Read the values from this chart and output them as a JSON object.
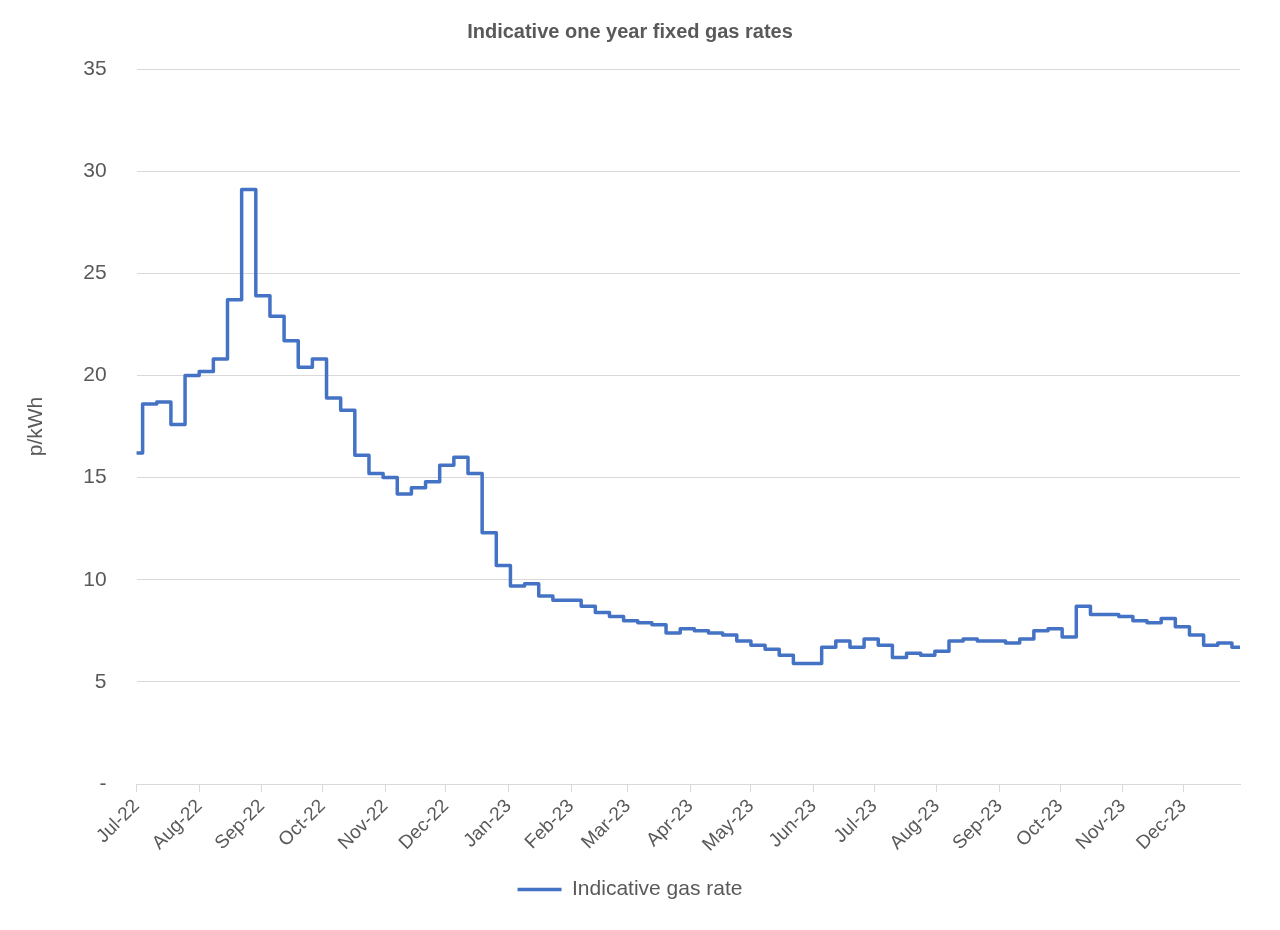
{
  "chart_data": {
    "type": "step",
    "title": "Indicative one year fixed gas rates",
    "ylabel": "p/kWh",
    "x": [
      "2022-07-01",
      "2022-07-04",
      "2022-07-11",
      "2022-07-18",
      "2022-07-25",
      "2022-08-01",
      "2022-08-08",
      "2022-08-15",
      "2022-08-22",
      "2022-08-29",
      "2022-09-05",
      "2022-09-12",
      "2022-09-19",
      "2022-09-26",
      "2022-10-03",
      "2022-10-10",
      "2022-10-17",
      "2022-10-24",
      "2022-10-31",
      "2022-11-07",
      "2022-11-14",
      "2022-11-21",
      "2022-11-28",
      "2022-12-05",
      "2022-12-12",
      "2022-12-19",
      "2022-12-26",
      "2023-01-02",
      "2023-01-09",
      "2023-01-16",
      "2023-01-23",
      "2023-02-06",
      "2023-02-13",
      "2023-02-20",
      "2023-02-27",
      "2023-03-06",
      "2023-03-13",
      "2023-03-20",
      "2023-03-27",
      "2023-04-03",
      "2023-04-10",
      "2023-04-17",
      "2023-04-24",
      "2023-05-01",
      "2023-05-08",
      "2023-05-15",
      "2023-05-22",
      "2023-06-05",
      "2023-06-12",
      "2023-06-19",
      "2023-06-26",
      "2023-07-03",
      "2023-07-10",
      "2023-07-17",
      "2023-07-24",
      "2023-07-31",
      "2023-08-07",
      "2023-08-14",
      "2023-08-21",
      "2023-09-04",
      "2023-09-11",
      "2023-09-18",
      "2023-09-25",
      "2023-10-02",
      "2023-10-09",
      "2023-10-16",
      "2023-10-23",
      "2023-10-30",
      "2023-11-06",
      "2023-11-13",
      "2023-11-20",
      "2023-11-27",
      "2023-12-04",
      "2023-12-11",
      "2023-12-18",
      "2023-12-25",
      "2023-12-29"
    ],
    "series": [
      {
        "name": "Indicative gas rate",
        "color": "#4472c4",
        "values": [
          16.2,
          18.6,
          18.7,
          17.6,
          20.0,
          20.2,
          20.8,
          23.7,
          29.1,
          23.9,
          22.9,
          21.7,
          20.4,
          20.8,
          18.9,
          18.3,
          16.1,
          15.2,
          15.0,
          14.2,
          14.5,
          14.8,
          15.6,
          16.0,
          15.2,
          12.3,
          10.7,
          9.7,
          9.8,
          9.2,
          9.0,
          8.7,
          8.4,
          8.2,
          8.0,
          7.9,
          7.8,
          7.4,
          7.6,
          7.5,
          7.4,
          7.3,
          7.0,
          6.8,
          6.6,
          6.3,
          5.9,
          6.7,
          7.0,
          6.7,
          7.1,
          6.8,
          6.2,
          6.4,
          6.3,
          6.5,
          7.0,
          7.1,
          7.0,
          6.9,
          7.1,
          7.5,
          7.6,
          7.2,
          8.7,
          8.3,
          8.3,
          8.2,
          8.0,
          7.9,
          8.1,
          7.7,
          7.3,
          6.8,
          6.9,
          6.7,
          6.7
        ]
      }
    ],
    "xlim": [
      "2022-07-01",
      "2023-12-29"
    ],
    "xticks": [
      {
        "value": "2022-07-01",
        "label": "Jul-22"
      },
      {
        "value": "2022-08-01",
        "label": "Aug-22"
      },
      {
        "value": "2022-09-01",
        "label": "Sep-22"
      },
      {
        "value": "2022-10-01",
        "label": "Oct-22"
      },
      {
        "value": "2022-11-01",
        "label": "Nov-22"
      },
      {
        "value": "2022-12-01",
        "label": "Dec-22"
      },
      {
        "value": "2023-01-01",
        "label": "Jan-23"
      },
      {
        "value": "2023-02-01",
        "label": "Feb-23"
      },
      {
        "value": "2023-03-01",
        "label": "Mar-23"
      },
      {
        "value": "2023-04-01",
        "label": "Apr-23"
      },
      {
        "value": "2023-05-01",
        "label": "May-23"
      },
      {
        "value": "2023-06-01",
        "label": "Jun-23"
      },
      {
        "value": "2023-07-01",
        "label": "Jul-23"
      },
      {
        "value": "2023-08-01",
        "label": "Aug-23"
      },
      {
        "value": "2023-09-01",
        "label": "Sep-23"
      },
      {
        "value": "2023-10-01",
        "label": "Oct-23"
      },
      {
        "value": "2023-11-01",
        "label": "Nov-23"
      },
      {
        "value": "2023-12-01",
        "label": "Dec-23"
      }
    ],
    "ylim": [
      0,
      35
    ],
    "yticks": [
      {
        "value": 0,
        "label": "-"
      },
      5,
      10,
      15,
      20,
      25,
      30,
      35
    ],
    "grid": "y",
    "legend": "bottom",
    "marker": "none",
    "line_style": "solid"
  }
}
